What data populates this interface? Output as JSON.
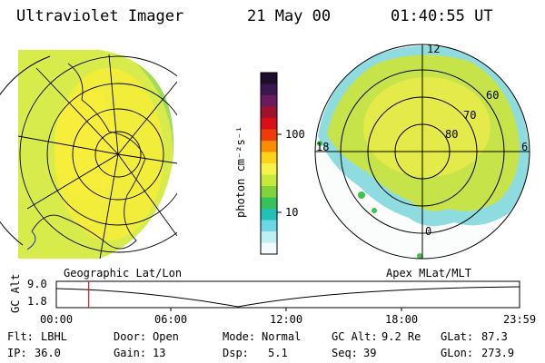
{
  "header": {
    "instrument": "Ultraviolet Imager",
    "date": "21 May 00",
    "time": "01:40:55 UT"
  },
  "colorbar": {
    "unit_label": "photon cm⁻²s⁻¹",
    "ticks": [
      "100",
      "10"
    ],
    "colors": [
      "#1c0d2b",
      "#3b1650",
      "#6b1a5e",
      "#a0122c",
      "#d80f16",
      "#f03a0a",
      "#fb8c00",
      "#ffd21a",
      "#f7f24a",
      "#c8e83c",
      "#7fd43a",
      "#34c25a",
      "#22c0b5",
      "#6ad8e6",
      "#bfeef3",
      "#f2fbfb"
    ]
  },
  "left_map": {
    "label": "Geographic Lat/Lon"
  },
  "right_map": {
    "label": "Apex MLat/MLT",
    "mlt_labels": [
      "12",
      "18",
      "6",
      "0"
    ],
    "lat_labels": [
      "60",
      "70",
      "80"
    ]
  },
  "orbit_plot": {
    "axis_label": "GC Alt",
    "y_ticks": [
      "9.0",
      "1.8"
    ],
    "x_ticks": [
      "00:00",
      "06:00",
      "12:00",
      "18:00",
      "23:59"
    ],
    "marker_time_fraction": 0.07
  },
  "info": {
    "row1": [
      {
        "key": "Flt:",
        "value": "LBHL"
      },
      {
        "key": "Door:",
        "value": "Open"
      },
      {
        "key": "Mode:",
        "value": "Normal"
      },
      {
        "key": "GC Alt:",
        "value": "9.2 Re"
      },
      {
        "key": "GLat:",
        "value": "87.3"
      }
    ],
    "row2": [
      {
        "key": "IP:",
        "value": "36.0"
      },
      {
        "key": "Gain:",
        "value": "13"
      },
      {
        "key": "Dsp:",
        "value": "5.1"
      },
      {
        "key": "Seq:",
        "value": "39"
      },
      {
        "key": "GLon:",
        "value": "273.9"
      }
    ]
  }
}
